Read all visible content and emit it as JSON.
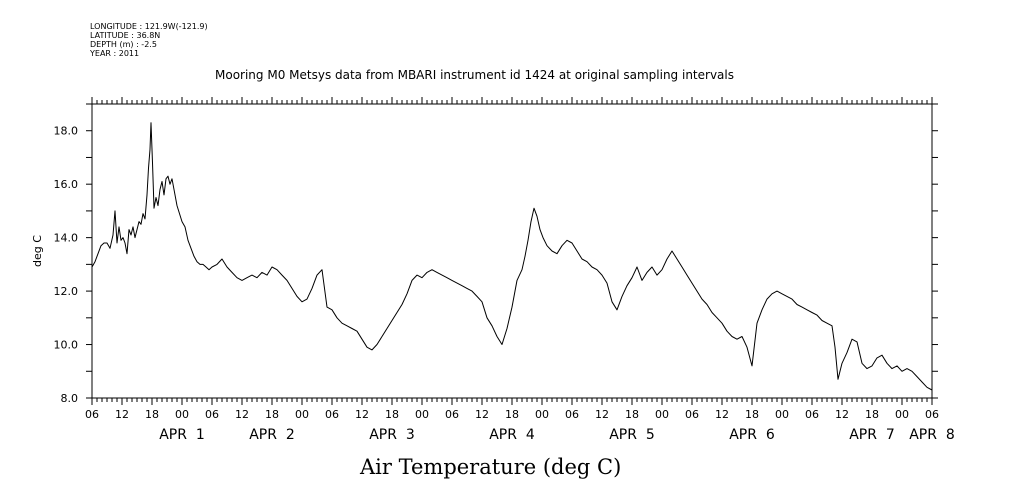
{
  "header": {
    "longitude": "LONGITUDE : 121.9W(-121.9)",
    "latitude": "LATITUDE : 36.8N",
    "depth": "DEPTH (m) : -2.5",
    "year": "YEAR : 2011"
  },
  "chart_data": {
    "type": "line",
    "title": "Mooring M0 Metsys data from MBARI instrument id 1424 at original sampling intervals",
    "xlabel": "Air Temperature (deg C)",
    "ylabel": "deg C",
    "ylim": [
      8,
      19
    ],
    "xlim_hours": [
      0,
      168
    ],
    "y_ticks": [
      8.0,
      10.0,
      12.0,
      14.0,
      16.0,
      18.0
    ],
    "y_tick_labels": [
      "8.0",
      "10.0",
      "12.0",
      "14.0",
      "16.0",
      "18.0"
    ],
    "x_hour_labels": [
      "06",
      "12",
      "18",
      "00",
      "06",
      "12",
      "18",
      "00",
      "06",
      "12",
      "18",
      "00",
      "06",
      "12",
      "18",
      "00",
      "06",
      "12",
      "18",
      "00",
      "06",
      "12",
      "18",
      "00",
      "06",
      "12",
      "18",
      "00",
      "06"
    ],
    "x_day_labels": [
      {
        "label": "APR  1",
        "hour": 18
      },
      {
        "label": "APR  2",
        "hour": 36
      },
      {
        "label": "APR  3",
        "hour": 60
      },
      {
        "label": "APR  4",
        "hour": 84
      },
      {
        "label": "APR  5",
        "hour": 108
      },
      {
        "label": "APR  6",
        "hour": 132
      },
      {
        "label": "APR  7",
        "hour": 156
      },
      {
        "label": "APR  8",
        "hour": 168
      }
    ],
    "grid": false,
    "series": [
      {
        "color": "#000000",
        "x": [
          0,
          0.6,
          1.2,
          1.8,
          2.4,
          3.0,
          3.6,
          4.2,
          4.6,
          5.0,
          5.4,
          5.8,
          6.2,
          6.6,
          7.0,
          7.4,
          7.8,
          8.2,
          8.6,
          9.0,
          9.4,
          9.8,
          10.2,
          10.6,
          11.0,
          11.3,
          11.6,
          11.8,
          12.1,
          12.4,
          12.8,
          13.2,
          13.6,
          14.0,
          14.4,
          14.8,
          15.2,
          15.6,
          16.0,
          16.5,
          17.0,
          17.5,
          18.0,
          18.6,
          19.2,
          19.8,
          20.4,
          21.0,
          21.6,
          22.2,
          22.8,
          23.4,
          24.0,
          25.0,
          26.0,
          27.0,
          28.0,
          29.0,
          30.0,
          31.0,
          32.0,
          33.0,
          34.0,
          35.0,
          36.0,
          37.0,
          38.0,
          39.0,
          40.0,
          41.0,
          42.0,
          43.0,
          44.0,
          45.0,
          46.0,
          47.0,
          48.0,
          49.0,
          50.0,
          51.0,
          52.0,
          53.0,
          54.0,
          55.0,
          56.0,
          57.0,
          58.0,
          59.0,
          60.0,
          61.0,
          62.0,
          63.0,
          64.0,
          65.0,
          66.0,
          67.0,
          68.0,
          69.0,
          70.0,
          71.0,
          72.0,
          73.0,
          74.0,
          75.0,
          76.0,
          77.0,
          78.0,
          79.0,
          80.0,
          81.0,
          82.0,
          83.0,
          84.0,
          85.0,
          86.0,
          86.6,
          87.2,
          87.8,
          88.4,
          89.0,
          89.6,
          90.2,
          91.0,
          92.0,
          93.0,
          94.0,
          95.0,
          96.0,
          97.0,
          98.0,
          99.0,
          100.0,
          101.0,
          102.0,
          103.0,
          104.0,
          105.0,
          106.0,
          107.0,
          108.0,
          109.0,
          110.0,
          111.0,
          112.0,
          113.0,
          114.0,
          115.0,
          116.0,
          117.0,
          118.0,
          119.0,
          120.0,
          121.0,
          122.0,
          123.0,
          124.0,
          125.0,
          126.0,
          127.0,
          128.0,
          129.0,
          130.0,
          131.0,
          132.0,
          133.0,
          134.0,
          135.0,
          136.0,
          137.0,
          138.0,
          139.0,
          140.0,
          141.0,
          142.0,
          143.0,
          144.0,
          145.0,
          146.0,
          147.0,
          148.0,
          148.6,
          149.2,
          150.0,
          151.0,
          152.0,
          153.0,
          154.0,
          155.0,
          156.0,
          157.0,
          158.0,
          159.0,
          160.0,
          161.0,
          162.0,
          163.0,
          164.0,
          165.0,
          166.0,
          167.0,
          168.0
        ],
        "y": [
          12.9,
          13.1,
          13.4,
          13.7,
          13.8,
          13.8,
          13.6,
          14.1,
          15.0,
          13.8,
          14.4,
          13.9,
          14.0,
          13.8,
          13.4,
          14.3,
          14.1,
          14.4,
          14.0,
          14.3,
          14.6,
          14.5,
          14.9,
          14.7,
          15.6,
          16.6,
          17.3,
          18.3,
          16.8,
          15.1,
          15.5,
          15.2,
          15.8,
          16.1,
          15.6,
          16.2,
          16.3,
          16.0,
          16.2,
          15.7,
          15.2,
          14.9,
          14.6,
          14.4,
          13.9,
          13.6,
          13.3,
          13.1,
          13.0,
          13.0,
          12.9,
          12.8,
          12.9,
          13.0,
          13.2,
          12.9,
          12.7,
          12.5,
          12.4,
          12.5,
          12.6,
          12.5,
          12.7,
          12.6,
          12.9,
          12.8,
          12.6,
          12.4,
          12.1,
          11.8,
          11.6,
          11.7,
          12.1,
          12.6,
          12.8,
          11.4,
          11.3,
          11.0,
          10.8,
          10.7,
          10.6,
          10.5,
          10.2,
          9.9,
          9.8,
          10.0,
          10.3,
          10.6,
          10.9,
          11.2,
          11.5,
          11.9,
          12.4,
          12.6,
          12.5,
          12.7,
          12.8,
          12.7,
          12.6,
          12.5,
          12.4,
          12.3,
          12.2,
          12.1,
          12.0,
          11.8,
          11.6,
          11.0,
          10.7,
          10.3,
          10.0,
          10.6,
          11.4,
          12.4,
          12.8,
          13.3,
          13.9,
          14.6,
          15.1,
          14.8,
          14.3,
          14.0,
          13.7,
          13.5,
          13.4,
          13.7,
          13.9,
          13.8,
          13.5,
          13.2,
          13.1,
          12.9,
          12.8,
          12.6,
          12.3,
          11.6,
          11.3,
          11.8,
          12.2,
          12.5,
          12.9,
          12.4,
          12.7,
          12.9,
          12.6,
          12.8,
          13.2,
          13.5,
          13.2,
          12.9,
          12.6,
          12.3,
          12.0,
          11.7,
          11.5,
          11.2,
          11.0,
          10.8,
          10.5,
          10.3,
          10.2,
          10.3,
          9.9,
          9.2,
          10.8,
          11.3,
          11.7,
          11.9,
          12.0,
          11.9,
          11.8,
          11.7,
          11.5,
          11.4,
          11.3,
          11.2,
          11.1,
          10.9,
          10.8,
          10.7,
          9.9,
          8.7,
          9.3,
          9.7,
          10.2,
          10.1,
          9.3,
          9.1,
          9.2,
          9.5,
          9.6,
          9.3,
          9.1,
          9.2,
          9.0,
          9.1,
          9.0,
          8.8,
          8.6,
          8.4,
          8.3
        ]
      }
    ]
  }
}
